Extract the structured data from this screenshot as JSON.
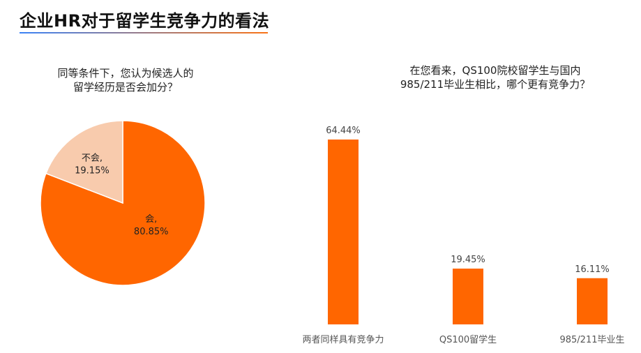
{
  "page": {
    "title": "企业HR对于留学生竞争力的看法",
    "accent_colors": {
      "underline_start": "#3b82f6",
      "underline_end": "#f97316"
    }
  },
  "colors": {
    "primary": "#ff6600",
    "secondary": "#f8cbad"
  },
  "chart_data": [
    {
      "type": "pie",
      "title": "同等条件下，您认为候选人的留学经历是否会加分？",
      "title_lines": [
        "同等条件下，您认为候选人的",
        "留学经历是否会加分？"
      ],
      "slices": [
        {
          "label": "会",
          "value": 80.85,
          "display": "80.85%",
          "color": "#ff6600"
        },
        {
          "label": "不会",
          "value": 19.15,
          "display": "19.15%",
          "color": "#f8cbad"
        }
      ]
    },
    {
      "type": "bar",
      "title": "在您看来，QS100院校留学生与国内985/211毕业生相比，哪个更有竞争力？",
      "title_lines": [
        "在您看来，QS100院校留学生与国内",
        "985/211毕业生相比，哪个更有竞争力？"
      ],
      "categories": [
        "两者同样具有竞争力",
        "QS100留学生",
        "985/211毕业生"
      ],
      "values": [
        64.44,
        19.45,
        16.11
      ],
      "value_labels": [
        "64.44%",
        "19.45%",
        "16.11%"
      ],
      "ylim": [
        0,
        70
      ],
      "color": "#ff6600"
    }
  ]
}
